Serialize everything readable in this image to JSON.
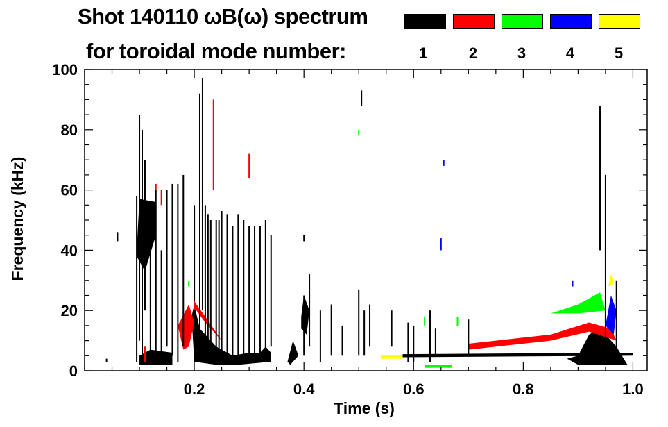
{
  "chart_data": {
    "type": "heatmap",
    "title": "Shot 140110 ωB(ω) spectrum",
    "subtitle": "for toroidal mode number:",
    "xlabel": "Time (s)",
    "ylabel": "Frequency (kHz)",
    "xlim": [
      0,
      1.026
    ],
    "ylim": [
      0,
      100
    ],
    "xticks": [
      0.2,
      0.4,
      0.6,
      0.8,
      1.0
    ],
    "xtick_labels": [
      "0.2",
      "0.4",
      "0.6",
      "0.8",
      "1.0"
    ],
    "yticks": [
      0,
      20,
      40,
      60,
      80,
      100
    ],
    "ytick_labels": [
      "0",
      "20",
      "40",
      "60",
      "80",
      "100"
    ],
    "legend": [
      {
        "label": "1",
        "color": "#000000"
      },
      {
        "label": "2",
        "color": "#ff0000"
      },
      {
        "label": "3",
        "color": "#00ff00"
      },
      {
        "label": "4",
        "color": "#0000ff"
      },
      {
        "label": "5",
        "color": "#ffff00"
      }
    ],
    "legend_placement": "top-right",
    "streaks": [
      [
        0.095,
        3,
        58,
        1
      ],
      [
        0.1,
        10,
        85,
        1
      ],
      [
        0.105,
        5,
        80,
        1
      ],
      [
        0.11,
        20,
        70,
        1
      ],
      [
        0.12,
        3,
        55,
        1
      ],
      [
        0.13,
        5,
        60,
        1
      ],
      [
        0.14,
        3,
        40,
        1
      ],
      [
        0.15,
        8,
        60,
        1
      ],
      [
        0.16,
        5,
        62,
        1
      ],
      [
        0.17,
        3,
        62,
        1
      ],
      [
        0.18,
        8,
        65,
        1
      ],
      [
        0.2,
        3,
        55,
        1
      ],
      [
        0.21,
        10,
        92,
        1
      ],
      [
        0.215,
        20,
        97,
        1
      ],
      [
        0.22,
        5,
        55,
        1
      ],
      [
        0.225,
        10,
        52,
        1
      ],
      [
        0.23,
        5,
        50,
        1
      ],
      [
        0.24,
        3,
        50,
        1
      ],
      [
        0.245,
        5,
        50,
        1
      ],
      [
        0.25,
        3,
        53,
        1
      ],
      [
        0.26,
        5,
        52,
        1
      ],
      [
        0.27,
        3,
        48,
        1
      ],
      [
        0.28,
        5,
        52,
        1
      ],
      [
        0.29,
        3,
        50,
        1
      ],
      [
        0.3,
        5,
        48,
        1
      ],
      [
        0.31,
        5,
        48,
        1
      ],
      [
        0.32,
        5,
        48,
        1
      ],
      [
        0.33,
        3,
        50,
        1
      ],
      [
        0.34,
        8,
        45,
        1
      ],
      [
        0.4,
        5,
        25,
        1
      ],
      [
        0.41,
        8,
        32,
        1
      ],
      [
        0.43,
        3,
        20,
        1
      ],
      [
        0.45,
        5,
        22,
        1
      ],
      [
        0.47,
        5,
        15,
        1
      ],
      [
        0.5,
        5,
        27,
        1
      ],
      [
        0.51,
        5,
        20,
        1
      ],
      [
        0.52,
        8,
        22,
        1
      ],
      [
        0.56,
        8,
        20,
        1
      ],
      [
        0.59,
        3,
        16,
        1
      ],
      [
        0.6,
        3,
        15,
        1
      ],
      [
        0.63,
        3,
        20,
        1
      ],
      [
        0.64,
        5,
        14,
        1
      ],
      [
        0.7,
        5,
        17,
        1
      ],
      [
        0.95,
        3,
        65,
        1
      ],
      [
        0.94,
        40,
        88,
        1
      ],
      [
        0.97,
        5,
        30,
        1
      ],
      [
        0.04,
        3,
        4,
        1
      ],
      [
        0.06,
        43,
        46,
        1
      ],
      [
        0.4,
        43,
        45,
        1
      ],
      [
        0.505,
        88,
        93,
        1
      ],
      [
        0.13,
        60,
        62,
        2
      ],
      [
        0.14,
        55,
        60,
        2
      ],
      [
        0.11,
        3,
        8,
        2
      ],
      [
        0.235,
        60,
        90,
        2
      ],
      [
        0.3,
        64,
        72,
        2
      ],
      [
        0.2,
        20,
        23,
        2
      ],
      [
        0.19,
        28,
        30,
        3
      ],
      [
        0.5,
        78,
        80,
        3
      ],
      [
        0.62,
        15,
        18,
        3
      ],
      [
        0.68,
        15,
        18,
        3
      ],
      [
        0.65,
        40,
        44,
        4
      ],
      [
        0.655,
        68,
        70,
        4
      ],
      [
        0.89,
        28,
        30,
        4
      ]
    ],
    "blobs": [
      {
        "mode": 1,
        "points": [
          [
            0.095,
            40
          ],
          [
            0.1,
            57
          ],
          [
            0.13,
            56
          ],
          [
            0.13,
            45
          ],
          [
            0.11,
            33
          ],
          [
            0.095,
            38
          ]
        ]
      },
      {
        "mode": 1,
        "points": [
          [
            0.195,
            18
          ],
          [
            0.2,
            22
          ],
          [
            0.21,
            14
          ],
          [
            0.24,
            8
          ],
          [
            0.27,
            5
          ],
          [
            0.3,
            6
          ],
          [
            0.32,
            6
          ],
          [
            0.33,
            8
          ],
          [
            0.34,
            6
          ],
          [
            0.34,
            3
          ],
          [
            0.28,
            2
          ],
          [
            0.24,
            2
          ],
          [
            0.2,
            3
          ]
        ]
      },
      {
        "mode": 2,
        "points": [
          [
            0.17,
            15
          ],
          [
            0.19,
            22
          ],
          [
            0.2,
            16
          ],
          [
            0.19,
            8
          ],
          [
            0.18,
            7
          ]
        ]
      },
      {
        "mode": 2,
        "points": [
          [
            0.2,
            23
          ],
          [
            0.22,
            18
          ],
          [
            0.25,
            10
          ],
          [
            0.255,
            9
          ],
          [
            0.22,
            16
          ],
          [
            0.2,
            21
          ]
        ]
      },
      {
        "mode": 1,
        "points": [
          [
            0.395,
            18
          ],
          [
            0.4,
            25
          ],
          [
            0.41,
            20
          ],
          [
            0.405,
            12
          ],
          [
            0.395,
            14
          ]
        ]
      },
      {
        "mode": 1,
        "points": [
          [
            0.9,
            5
          ],
          [
            0.92,
            12
          ],
          [
            0.94,
            14
          ],
          [
            0.97,
            8
          ],
          [
            0.99,
            2
          ],
          [
            0.9,
            2
          ],
          [
            0.88,
            4
          ]
        ]
      },
      {
        "mode": 1,
        "points": [
          [
            0.58,
            4.5
          ],
          [
            1.0,
            5
          ],
          [
            1.0,
            6
          ],
          [
            0.58,
            5.5
          ]
        ]
      },
      {
        "mode": 2,
        "points": [
          [
            0.7,
            9
          ],
          [
            0.85,
            12
          ],
          [
            0.92,
            16
          ],
          [
            0.96,
            14
          ],
          [
            0.97,
            10
          ],
          [
            0.92,
            13
          ],
          [
            0.85,
            10
          ],
          [
            0.7,
            7
          ]
        ]
      },
      {
        "mode": 3,
        "points": [
          [
            0.85,
            19
          ],
          [
            0.9,
            22
          ],
          [
            0.94,
            26
          ],
          [
            0.95,
            20
          ],
          [
            0.9,
            19
          ]
        ]
      },
      {
        "mode": 3,
        "points": [
          [
            0.62,
            1
          ],
          [
            0.67,
            1
          ],
          [
            0.67,
            2
          ],
          [
            0.62,
            2
          ]
        ]
      },
      {
        "mode": 4,
        "points": [
          [
            0.95,
            15
          ],
          [
            0.96,
            25
          ],
          [
            0.97,
            20
          ],
          [
            0.965,
            12
          ]
        ]
      },
      {
        "mode": 5,
        "points": [
          [
            0.955,
            28
          ],
          [
            0.96,
            32
          ],
          [
            0.965,
            29
          ]
        ]
      },
      {
        "mode": 5,
        "points": [
          [
            0.54,
            4
          ],
          [
            0.58,
            4
          ],
          [
            0.58,
            5
          ],
          [
            0.54,
            5
          ]
        ]
      },
      {
        "mode": 1,
        "points": [
          [
            0.1,
            2
          ],
          [
            0.16,
            2
          ],
          [
            0.16,
            6
          ],
          [
            0.12,
            7
          ],
          [
            0.1,
            5
          ]
        ]
      },
      {
        "mode": 1,
        "points": [
          [
            0.37,
            3
          ],
          [
            0.38,
            10
          ],
          [
            0.39,
            5
          ],
          [
            0.375,
            2
          ]
        ]
      }
    ]
  }
}
